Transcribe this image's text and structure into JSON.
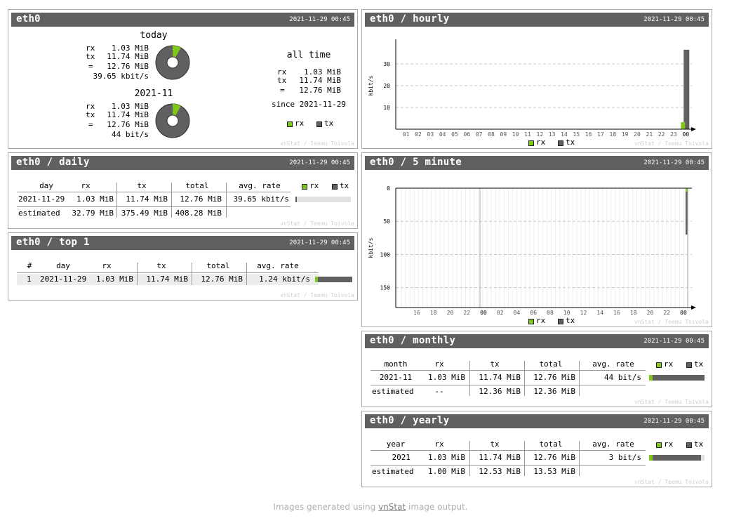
{
  "iface": "eth0",
  "timestamp": "2021-11-29 00:45",
  "credit": "vnStat / Teemu Toivola",
  "legend": {
    "rx": "rx",
    "tx": "tx"
  },
  "colors": {
    "rx": "#7fc71b",
    "tx": "#606060",
    "header": "#606060"
  },
  "summary": {
    "title": "eth0",
    "today": {
      "label": "today",
      "rx": "1.03 MiB",
      "tx": "11.74 MiB",
      "total": "12.76 MiB",
      "rate": "39.65 kbit/s",
      "rx_fraction": 0.081
    },
    "month": {
      "label": "2021-11",
      "rx": "1.03 MiB",
      "tx": "11.74 MiB",
      "total": "12.76 MiB",
      "rate": "44 bit/s",
      "rx_fraction": 0.081
    },
    "alltime": {
      "label": "all time",
      "rx": "1.03 MiB",
      "tx": "11.74 MiB",
      "total": "12.76 MiB",
      "since": "since 2021-11-29"
    },
    "row_labels": {
      "rx": "rx",
      "tx": "tx",
      "total": "="
    }
  },
  "daily": {
    "title": "eth0 / daily",
    "headers": [
      "day",
      "rx",
      "tx",
      "total",
      "avg. rate"
    ],
    "rows": [
      {
        "day": "2021-11-29",
        "rx": "1.03 MiB",
        "tx": "11.74 MiB",
        "total": "12.76 MiB",
        "rate": "39.65 kbit/s",
        "bar_fraction": 0.02
      }
    ],
    "estimated": {
      "label": "estimated",
      "rx": "32.79 MiB",
      "tx": "375.49 MiB",
      "total": "408.28 MiB"
    }
  },
  "top": {
    "title": "eth0 / top 1",
    "headers": [
      "#",
      "day",
      "rx",
      "tx",
      "total",
      "avg. rate"
    ],
    "rows": [
      {
        "rank": "1",
        "day": "2021-11-29",
        "rx": "1.03 MiB",
        "tx": "11.74 MiB",
        "total": "12.76 MiB",
        "rate": "1.24 kbit/s",
        "bar_fraction": 1.0
      }
    ]
  },
  "monthly": {
    "title": "eth0 / monthly",
    "headers": [
      "month",
      "rx",
      "tx",
      "total",
      "avg. rate"
    ],
    "rows": [
      {
        "period": "2021-11",
        "rx": "1.03 MiB",
        "tx": "11.74 MiB",
        "total": "12.76 MiB",
        "rate": "44 bit/s",
        "bar_fraction": 1.0
      }
    ],
    "estimated": {
      "label": "estimated",
      "rx": "--",
      "tx": "12.36 MiB",
      "total": "12.36 MiB"
    }
  },
  "yearly": {
    "title": "eth0 / yearly",
    "headers": [
      "year",
      "rx",
      "tx",
      "total",
      "avg. rate"
    ],
    "rows": [
      {
        "period": "2021",
        "rx": "1.03 MiB",
        "tx": "11.74 MiB",
        "total": "12.76 MiB",
        "rate": "3 bit/s",
        "bar_fraction": 0.94
      }
    ],
    "estimated": {
      "label": "estimated",
      "rx": "1.00 MiB",
      "tx": "12.53 MiB",
      "total": "13.53 MiB"
    }
  },
  "chart_data": [
    {
      "name": "eth0 / hourly",
      "type": "bar",
      "ylabel": "kbit/s",
      "ylim": [
        0,
        40
      ],
      "yticks": [
        10,
        20,
        30
      ],
      "categories": [
        "01",
        "02",
        "03",
        "04",
        "05",
        "06",
        "07",
        "08",
        "09",
        "10",
        "11",
        "12",
        "13",
        "14",
        "15",
        "16",
        "17",
        "18",
        "19",
        "20",
        "21",
        "22",
        "23",
        "00"
      ],
      "series": [
        {
          "name": "rx",
          "values": [
            0,
            0,
            0,
            0,
            0,
            0,
            0,
            0,
            0,
            0,
            0,
            0,
            0,
            0,
            0,
            0,
            0,
            0,
            0,
            0,
            0,
            0,
            0,
            3.2
          ]
        },
        {
          "name": "tx",
          "values": [
            0,
            0,
            0,
            0,
            0,
            0,
            0,
            0,
            0,
            0,
            0,
            0,
            0,
            0,
            0,
            0,
            0,
            0,
            0,
            0,
            0,
            0,
            0,
            36.5
          ]
        }
      ]
    },
    {
      "name": "eth0 / 5 minute",
      "type": "bar",
      "ylabel": "kbit/s",
      "ylim": [
        0,
        180
      ],
      "yticks": [
        0,
        50,
        100,
        150
      ],
      "categories": [
        "16",
        "18",
        "20",
        "22",
        "00",
        "02",
        "04",
        "06",
        "08",
        "10",
        "12",
        "14",
        "16",
        "18",
        "20",
        "22",
        "00"
      ],
      "series": [
        {
          "name": "rx",
          "values": [
            0,
            0,
            0,
            0,
            0,
            0,
            0,
            0,
            0,
            0,
            0,
            0,
            0,
            0,
            0,
            0,
            2
          ]
        },
        {
          "name": "tx",
          "values": [
            0,
            0,
            0,
            0,
            0,
            0,
            0,
            0,
            0,
            0,
            0,
            0,
            0,
            0,
            0,
            0,
            70
          ]
        }
      ]
    }
  ],
  "footer": {
    "prefix": "Images generated using ",
    "link": "vnStat",
    "suffix": " image output."
  }
}
